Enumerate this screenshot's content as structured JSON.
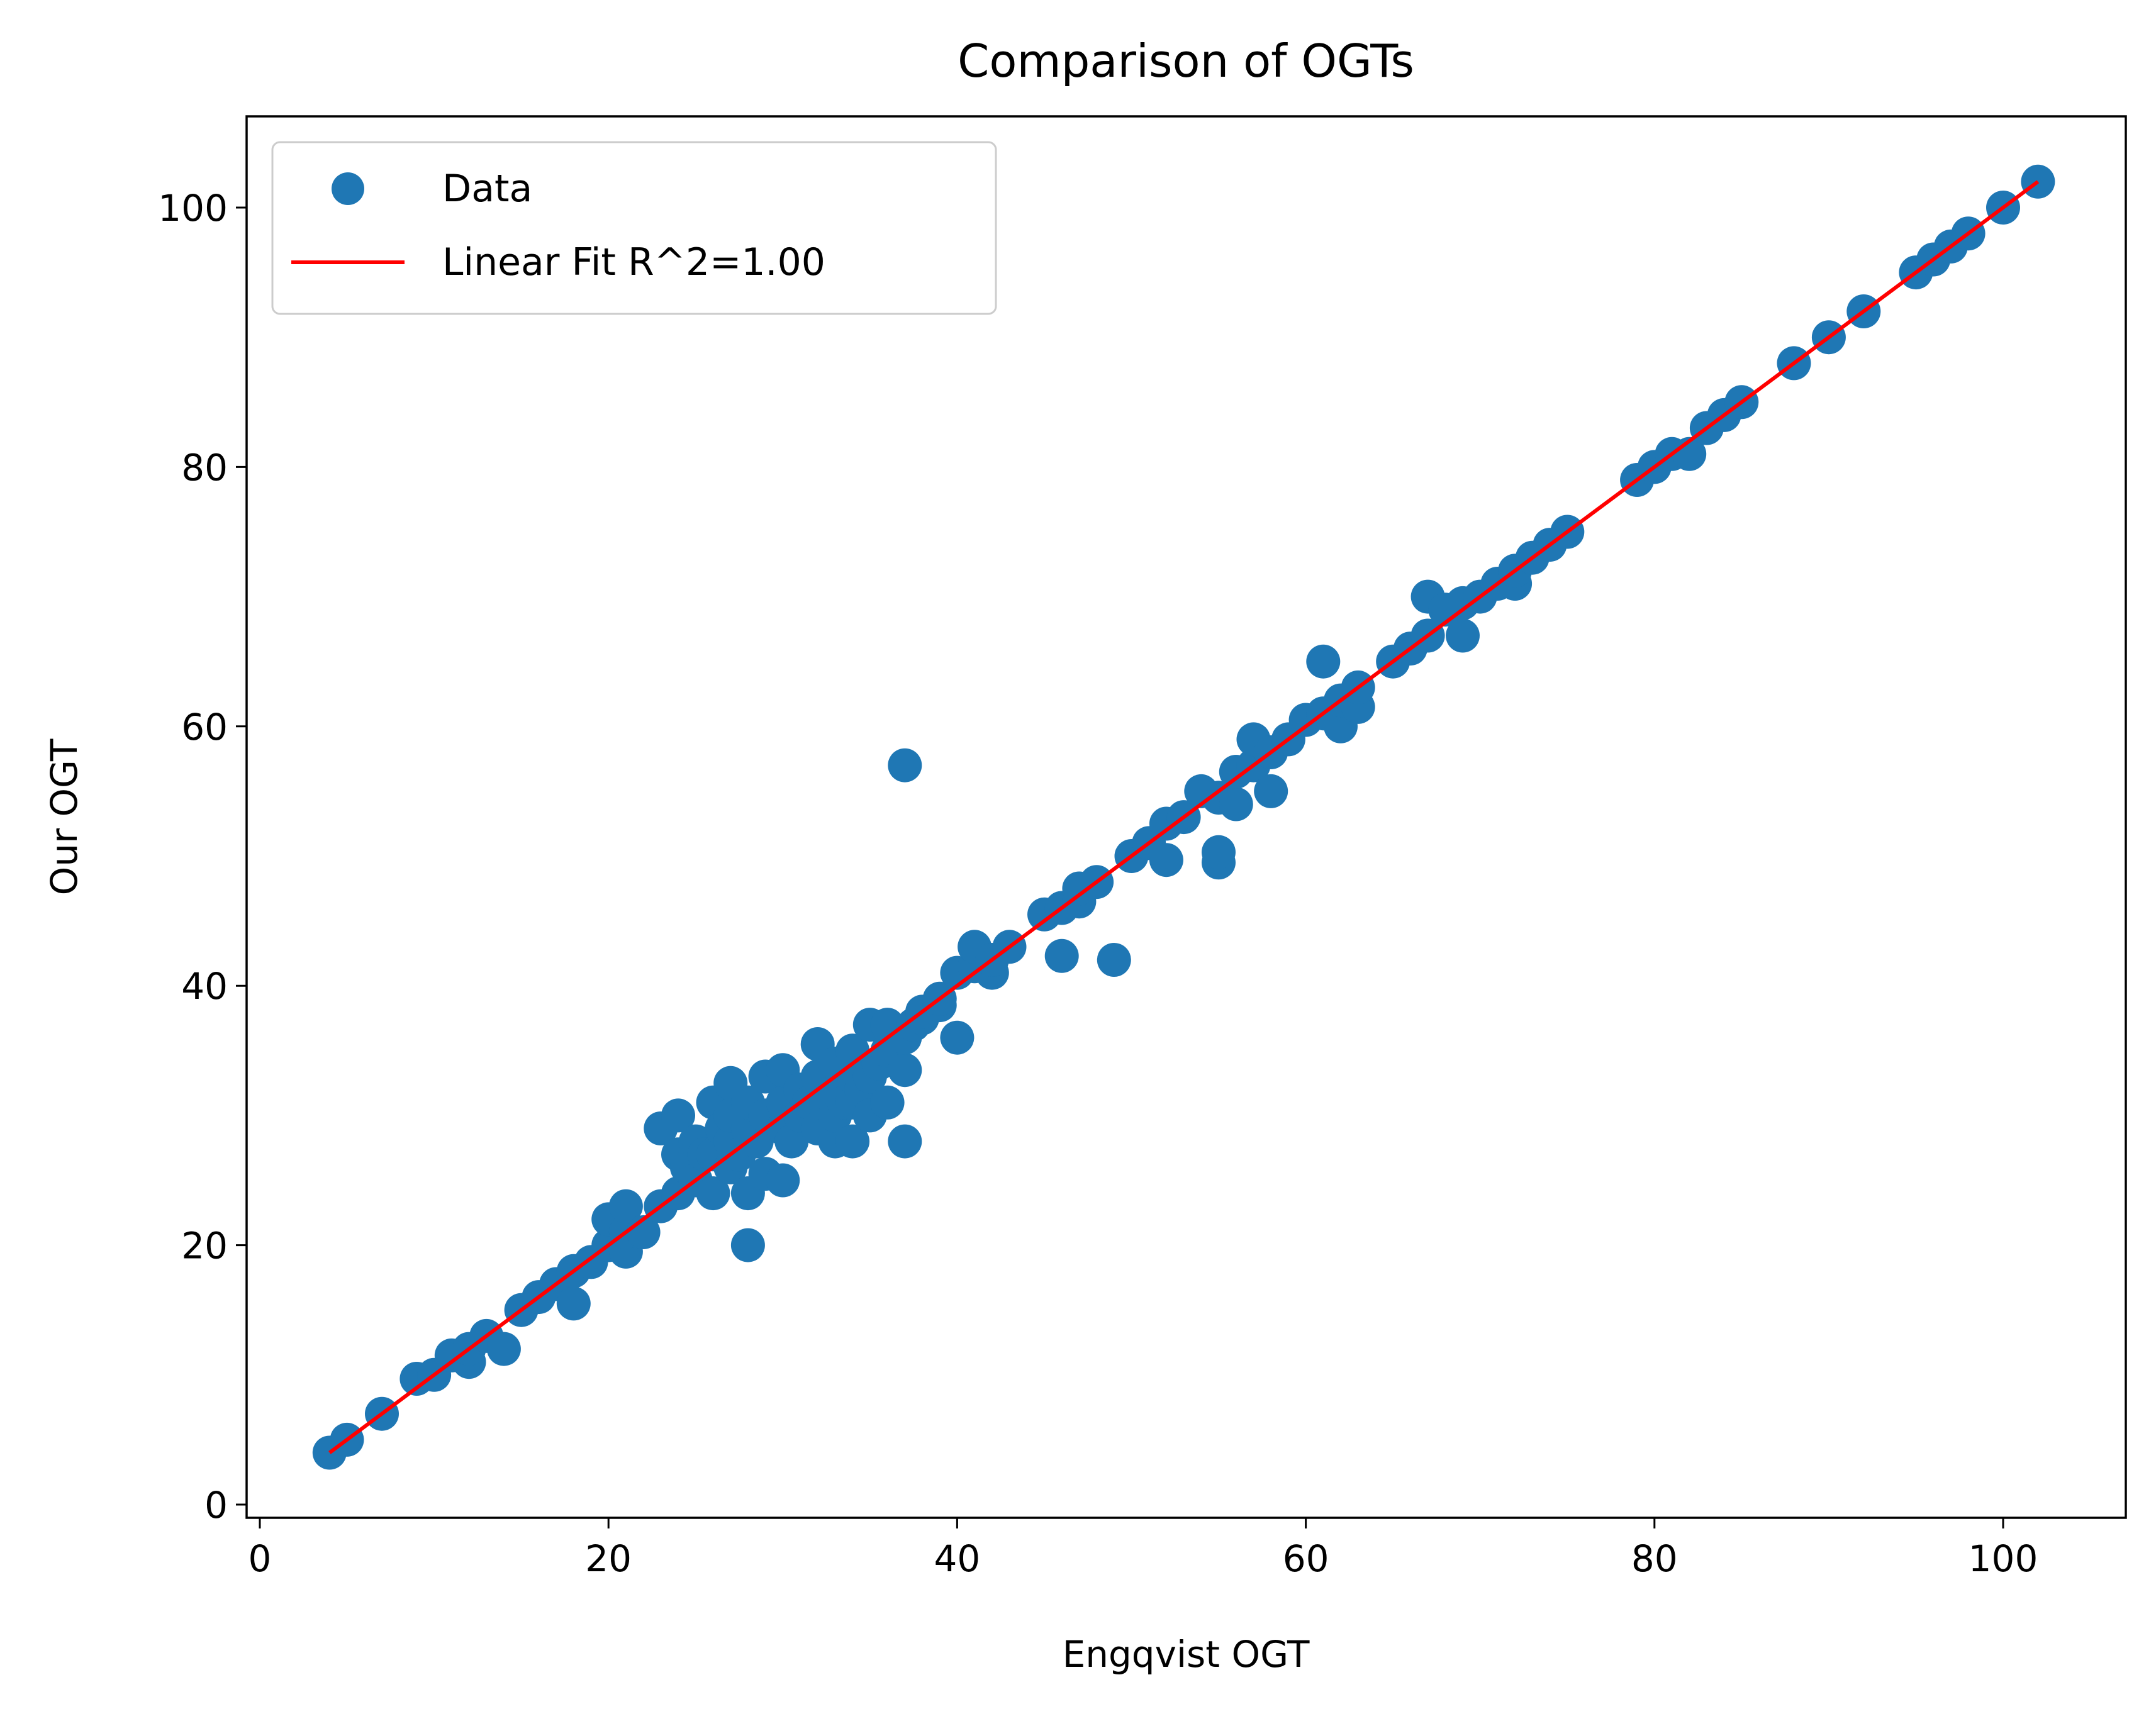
{
  "chart_data": {
    "type": "scatter",
    "title": "Comparison of OGTs",
    "xlabel": "Engqvist OGT",
    "ylabel": "Our OGT",
    "xlim": [
      -0.9,
      107
    ],
    "ylim": [
      -0.9,
      107
    ],
    "xticks": [
      0,
      20,
      40,
      60,
      80,
      100
    ],
    "yticks": [
      0,
      20,
      40,
      60,
      80,
      100
    ],
    "grid": false,
    "legend": {
      "location": "upper left",
      "entries": [
        "Data",
        "Linear Fit R^2=1.00"
      ]
    },
    "colors": {
      "scatter": "#1f77b4",
      "fit": "#ff0000"
    },
    "series": [
      {
        "name": "Data",
        "kind": "scatter",
        "points": [
          [
            4,
            4
          ],
          [
            5,
            5
          ],
          [
            7,
            7
          ],
          [
            9,
            9.7
          ],
          [
            10,
            10
          ],
          [
            11,
            11.5
          ],
          [
            12,
            11
          ],
          [
            12,
            12
          ],
          [
            13,
            13
          ],
          [
            14,
            12
          ],
          [
            15,
            15
          ],
          [
            16,
            16
          ],
          [
            17,
            17
          ],
          [
            18,
            15.5
          ],
          [
            18,
            18
          ],
          [
            19,
            18.7
          ],
          [
            20,
            20
          ],
          [
            20,
            22
          ],
          [
            21,
            19.5
          ],
          [
            21,
            21
          ],
          [
            21,
            23
          ],
          [
            22,
            21
          ],
          [
            23,
            23
          ],
          [
            23,
            29
          ],
          [
            24,
            24
          ],
          [
            24,
            27
          ],
          [
            24,
            30
          ],
          [
            24.5,
            26
          ],
          [
            25,
            25
          ],
          [
            25,
            28
          ],
          [
            25.5,
            27
          ],
          [
            26,
            24
          ],
          [
            26,
            27
          ],
          [
            26,
            31
          ],
          [
            26.5,
            29
          ],
          [
            27,
            26
          ],
          [
            27,
            28
          ],
          [
            27,
            30
          ],
          [
            27,
            32.5
          ],
          [
            27.5,
            27
          ],
          [
            28,
            20
          ],
          [
            28,
            24
          ],
          [
            28,
            29
          ],
          [
            28,
            31
          ],
          [
            28.5,
            28
          ],
          [
            29,
            25.5
          ],
          [
            29,
            30
          ],
          [
            29,
            33
          ],
          [
            30,
            25
          ],
          [
            30,
            29
          ],
          [
            30,
            31
          ],
          [
            30,
            33.5
          ],
          [
            30.5,
            28
          ],
          [
            31,
            30
          ],
          [
            31,
            32
          ],
          [
            31.5,
            31
          ],
          [
            32,
            29
          ],
          [
            32,
            33
          ],
          [
            32,
            35.5
          ],
          [
            32.5,
            31
          ],
          [
            33,
            28
          ],
          [
            33,
            30
          ],
          [
            33,
            32
          ],
          [
            33,
            34
          ],
          [
            33.5,
            31
          ],
          [
            34,
            28
          ],
          [
            34,
            31
          ],
          [
            34,
            33
          ],
          [
            34,
            35
          ],
          [
            34.5,
            32
          ],
          [
            35,
            30
          ],
          [
            35,
            33
          ],
          [
            35,
            37
          ],
          [
            35.5,
            34
          ],
          [
            36,
            31
          ],
          [
            36,
            35
          ],
          [
            36,
            37
          ],
          [
            37,
            28
          ],
          [
            37,
            33.5
          ],
          [
            37,
            36
          ],
          [
            37,
            57
          ],
          [
            37.5,
            37
          ],
          [
            38,
            37.5
          ],
          [
            38,
            38
          ],
          [
            39,
            38.5
          ],
          [
            39,
            39
          ],
          [
            40,
            36
          ],
          [
            40,
            41
          ],
          [
            41,
            41.5
          ],
          [
            41,
            43
          ],
          [
            42,
            41
          ],
          [
            42,
            42
          ],
          [
            43,
            43
          ],
          [
            45,
            45.5
          ],
          [
            46,
            42.3
          ],
          [
            46,
            46
          ],
          [
            47,
            46.5
          ],
          [
            47,
            47.5
          ],
          [
            48,
            48
          ],
          [
            49,
            42
          ],
          [
            50,
            50
          ],
          [
            51,
            51
          ],
          [
            52,
            49.7
          ],
          [
            52,
            52.5
          ],
          [
            53,
            53
          ],
          [
            54,
            55
          ],
          [
            55,
            49.5
          ],
          [
            55,
            50.3
          ],
          [
            55,
            54.5
          ],
          [
            56,
            54
          ],
          [
            56,
            56.5
          ],
          [
            57,
            57
          ],
          [
            57,
            59
          ],
          [
            58,
            55
          ],
          [
            58,
            58
          ],
          [
            59,
            59
          ],
          [
            60,
            60.5
          ],
          [
            61,
            61
          ],
          [
            61,
            65
          ],
          [
            62,
            60
          ],
          [
            62,
            62
          ],
          [
            63,
            61.5
          ],
          [
            63,
            63
          ],
          [
            65,
            65
          ],
          [
            66,
            66
          ],
          [
            67,
            67
          ],
          [
            67,
            70
          ],
          [
            68,
            69
          ],
          [
            69,
            67
          ],
          [
            69,
            69.5
          ],
          [
            70,
            70
          ],
          [
            71,
            71
          ],
          [
            72,
            71
          ],
          [
            72,
            72
          ],
          [
            73,
            73
          ],
          [
            74,
            74
          ],
          [
            75,
            75
          ],
          [
            79,
            79
          ],
          [
            80,
            80
          ],
          [
            81,
            81
          ],
          [
            82,
            81
          ],
          [
            83,
            83
          ],
          [
            84,
            84
          ],
          [
            85,
            85
          ],
          [
            88,
            88
          ],
          [
            90,
            90
          ],
          [
            92,
            92
          ],
          [
            95,
            95
          ],
          [
            96,
            96
          ],
          [
            97,
            97
          ],
          [
            98,
            98
          ],
          [
            100,
            100
          ],
          [
            102,
            102
          ]
        ]
      },
      {
        "name": "Linear Fit R^2=1.00",
        "kind": "line",
        "x": [
          4,
          102
        ],
        "y": [
          4,
          102
        ]
      }
    ]
  }
}
